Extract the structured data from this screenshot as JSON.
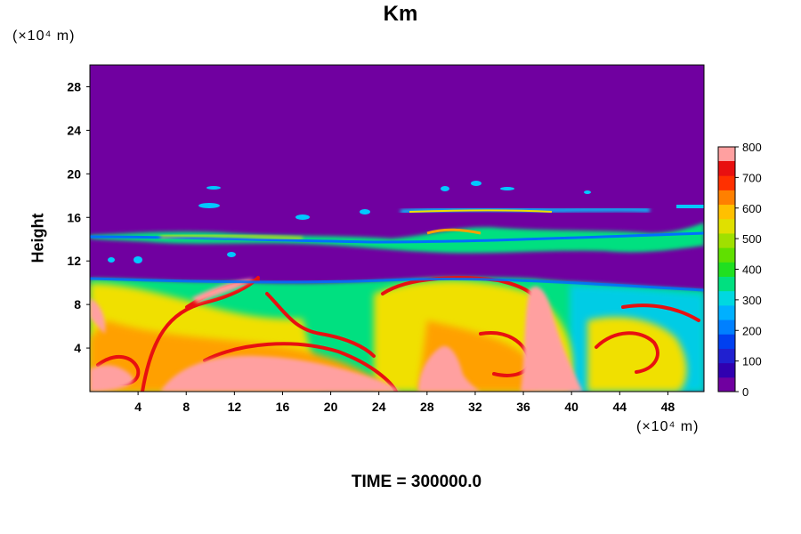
{
  "chart_data": {
    "type": "heatmap",
    "title": "Km",
    "xlabel": "",
    "ylabel": "Height",
    "x_unit": "(×10⁴ m)",
    "y_unit": "(×10⁴ m)",
    "xlim": [
      0,
      51
    ],
    "ylim": [
      0,
      30
    ],
    "x_ticks": [
      4,
      8,
      12,
      16,
      20,
      24,
      28,
      32,
      36,
      40,
      44,
      48
    ],
    "y_ticks": [
      4,
      8,
      12,
      16,
      20,
      24,
      28
    ],
    "colorbar": {
      "min": 0,
      "max": 800,
      "ticks": [
        0,
        100,
        200,
        300,
        400,
        500,
        600,
        700,
        800
      ]
    },
    "footer": "TIME = 300000.0",
    "background_value": 0
  },
  "colors": {
    "background": "#7000a0",
    "colorscale": [
      "#7000a0",
      "#2020d0",
      "#0070ff",
      "#00c8ff",
      "#00e080",
      "#40e000",
      "#a0e000",
      "#f0e000",
      "#ffa000",
      "#ff5000",
      "#e81010",
      "#ffa0a0"
    ]
  }
}
